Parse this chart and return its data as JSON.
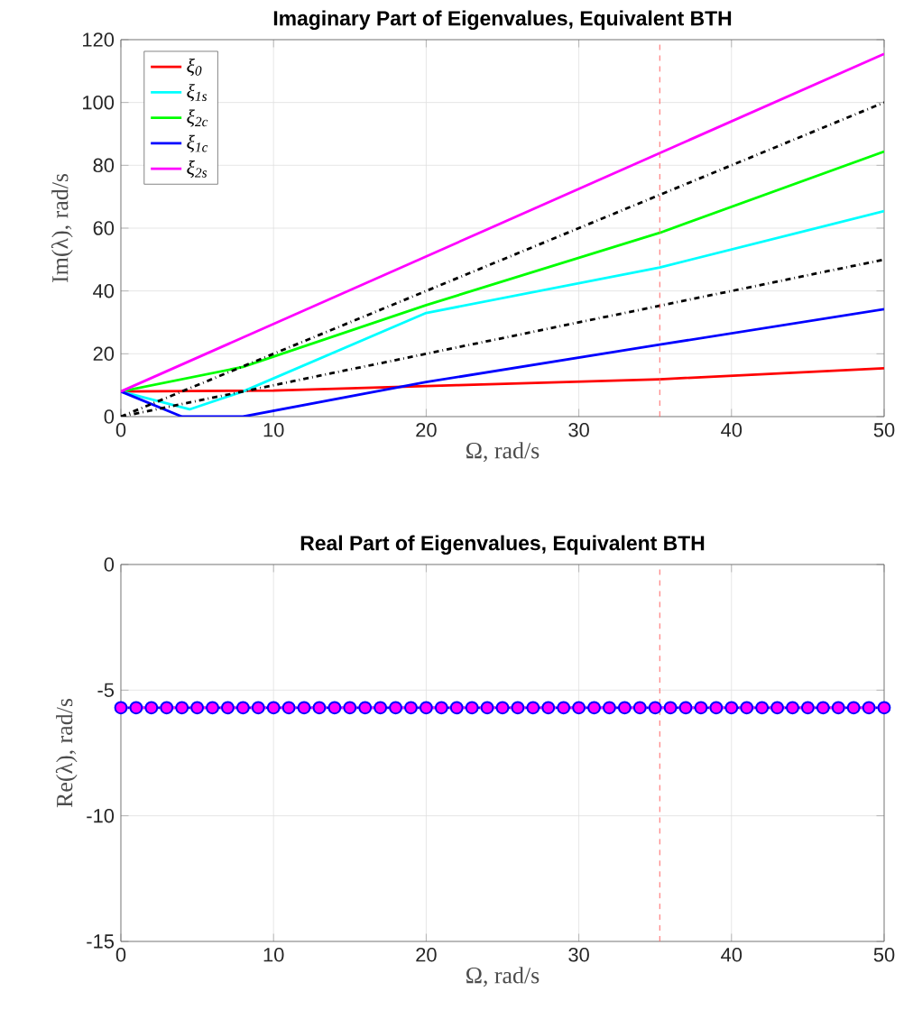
{
  "chart_data": [
    {
      "type": "line",
      "title": "Imaginary Part of Eigenvalues, Equivalent BTH",
      "xlabel": "Ω, rad/s",
      "ylabel": "Im(λ), rad/s",
      "xlim": [
        0,
        50
      ],
      "ylim": [
        0,
        120
      ],
      "xticks": [
        0,
        10,
        20,
        30,
        40,
        50
      ],
      "yticks": [
        0,
        20,
        40,
        60,
        80,
        100,
        120
      ],
      "grid": true,
      "legend": "top left",
      "series": [
        {
          "name": "ξ$_{0}$",
          "color": "#ff0000",
          "x": [
            0,
            10,
            22,
            35.3,
            50
          ],
          "values": [
            8,
            8.3,
            10,
            11.9,
            15.4
          ]
        },
        {
          "name": "ξ$_{1s}$",
          "color": "#00ffff",
          "x": [
            0,
            4.5,
            8,
            20,
            35.3,
            50
          ],
          "values": [
            8,
            2.3,
            8,
            33,
            47.5,
            65.4
          ]
        },
        {
          "name": "ξ$_{2c}$",
          "color": "#00ff00",
          "x": [
            0,
            8,
            20,
            35.3,
            50
          ],
          "values": [
            8,
            15.8,
            35.5,
            58.5,
            84.4
          ]
        },
        {
          "name": "ξ$_{1c}$",
          "color": "#0000ff",
          "x": [
            0,
            4,
            8,
            20,
            35.3,
            50
          ],
          "values": [
            8,
            0,
            0,
            11,
            22.9,
            34.2
          ]
        },
        {
          "name": "ξ$_{2s}$",
          "color": "#ff00ff",
          "x": [
            0,
            50
          ],
          "values": [
            8,
            115.5
          ]
        },
        {
          "color": "#000000",
          "line_style": "dashed",
          "x": [
            0,
            50
          ],
          "values": [
            0,
            100
          ]
        },
        {
          "color": "#000000",
          "line_style": "dashed",
          "x": [
            0,
            50
          ],
          "values": [
            0,
            50
          ]
        }
      ],
      "ref_lines": [
        {
          "axis": "x",
          "value": 35.3,
          "color": "#ff6666",
          "line_style": "dashed"
        }
      ]
    },
    {
      "type": "line",
      "title": "Real Part of Eigenvalues, Equivalent BTH",
      "xlabel": "Ω, rad/s",
      "ylabel": "Re(λ), rad/s",
      "xlim": [
        0,
        50
      ],
      "ylim": [
        -15,
        0
      ],
      "xticks": [
        0,
        10,
        20,
        30,
        40,
        50
      ],
      "yticks": [
        -15,
        -10,
        -5,
        0
      ],
      "grid": true,
      "series": [
        {
          "color": "#0000ff",
          "marker": "circle",
          "x": [
            0,
            1,
            2,
            3,
            4,
            5,
            6,
            7,
            8,
            9,
            10,
            11,
            12,
            13,
            14,
            15,
            16,
            17,
            18,
            19,
            20,
            21,
            22,
            23,
            24,
            25,
            26,
            27,
            28,
            29,
            30,
            31,
            32,
            33,
            34,
            35,
            36,
            37,
            38,
            39,
            40,
            41,
            42,
            43,
            44,
            45,
            46,
            47,
            48,
            49,
            50
          ],
          "values": [
            -5.7,
            -5.7,
            -5.7,
            -5.7,
            -5.7,
            -5.7,
            -5.7,
            -5.7,
            -5.7,
            -5.7,
            -5.7,
            -5.7,
            -5.7,
            -5.7,
            -5.7,
            -5.7,
            -5.7,
            -5.7,
            -5.7,
            -5.7,
            -5.7,
            -5.7,
            -5.7,
            -5.7,
            -5.7,
            -5.7,
            -5.7,
            -5.7,
            -5.7,
            -5.7,
            -5.7,
            -5.7,
            -5.7,
            -5.7,
            -5.7,
            -5.7,
            -5.7,
            -5.7,
            -5.7,
            -5.7,
            -5.7,
            -5.7,
            -5.7,
            -5.7,
            -5.7,
            -5.7,
            -5.7,
            -5.7,
            -5.7,
            -5.7,
            -5.7
          ]
        },
        {
          "color": "#ff00ff",
          "line_style": "dotted",
          "x": [
            0,
            50
          ],
          "values": [
            -5.7,
            -5.7
          ]
        }
      ],
      "ref_lines": [
        {
          "axis": "x",
          "value": 35.3,
          "color": "#ff6666",
          "line_style": "dashed"
        }
      ]
    }
  ]
}
